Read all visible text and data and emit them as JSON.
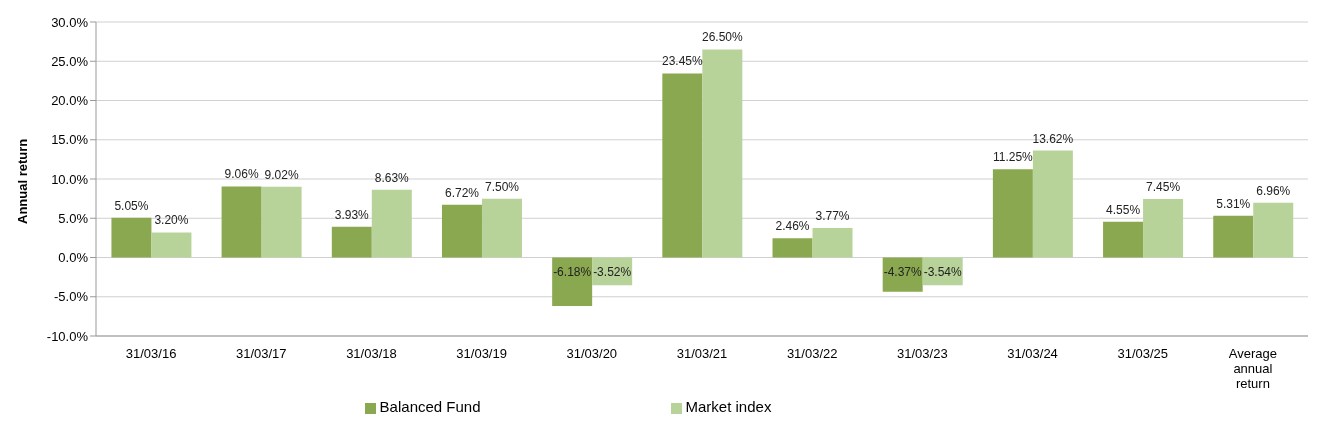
{
  "chart_data": {
    "type": "bar",
    "ylabel": "Annual return",
    "categories": [
      "31/03/16",
      "31/03/17",
      "31/03/18",
      "31/03/19",
      "31/03/20",
      "31/03/21",
      "31/03/22",
      "31/03/23",
      "31/03/24",
      "31/03/25",
      "Average annual return"
    ],
    "series": [
      {
        "name": "Balanced Fund",
        "color": "#8aa84f",
        "values": [
          5.05,
          9.06,
          3.93,
          6.72,
          -6.18,
          23.45,
          2.46,
          -4.37,
          11.25,
          4.55,
          5.31
        ],
        "value_labels": [
          "5.05%",
          "9.06%",
          "3.93%",
          "6.72%",
          "-6.18%",
          "23.45%",
          "2.46%",
          "-4.37%",
          "11.25%",
          "4.55%",
          "5.31%"
        ]
      },
      {
        "name": "Market index",
        "color": "#b8d399",
        "values": [
          3.2,
          9.02,
          8.63,
          7.5,
          -3.52,
          26.5,
          3.77,
          -3.54,
          13.62,
          7.45,
          6.96
        ],
        "value_labels": [
          "3.20%",
          "9.02%",
          "8.63%",
          "7.50%",
          "-3.52%",
          "26.50%",
          "3.77%",
          "-3.54%",
          "13.62%",
          "7.45%",
          "6.96%"
        ]
      }
    ],
    "ylim": [
      -10,
      30
    ],
    "yticks": [
      {
        "value": -10,
        "label": "-10.0%"
      },
      {
        "value": -5,
        "label": "-5.0%"
      },
      {
        "value": 0,
        "label": "0.0%"
      },
      {
        "value": 5,
        "label": "5.0%"
      },
      {
        "value": 10,
        "label": "10.0%"
      },
      {
        "value": 15,
        "label": "15.0%"
      },
      {
        "value": 20,
        "label": "20.0%"
      },
      {
        "value": 25,
        "label": "25.0%"
      },
      {
        "value": 30,
        "label": "30.0%"
      }
    ],
    "grid": "y",
    "legend": "bottom"
  }
}
